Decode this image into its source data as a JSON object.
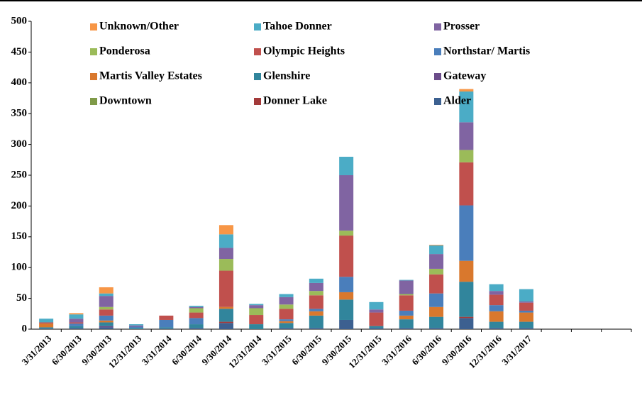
{
  "chart_data": {
    "type": "stacked_bar",
    "categories": [
      "3/31/2013",
      "6/30/2013",
      "9/30/2013",
      "12/31/2013",
      "3/31/2014",
      "6/30/2014",
      "9/30/2014",
      "12/31/2014",
      "3/31/2015",
      "6/30/2015",
      "9/30/2015",
      "12/31/2015",
      "3/31/2016",
      "6/30/2016",
      "9/30/2016",
      "12/31/2016",
      "3/31/2017",
      null,
      null,
      null
    ],
    "series": [
      {
        "name": "Alder",
        "color": "#3c6090",
        "values": [
          1,
          2,
          3,
          0,
          1,
          2,
          10,
          0,
          2,
          2,
          15,
          2,
          2,
          2,
          18,
          2,
          2,
          null,
          null,
          null
        ]
      },
      {
        "name": "Donner Lake",
        "color": "#a33a3a",
        "values": [
          0,
          0,
          0,
          0,
          0,
          0,
          2,
          0,
          0,
          0,
          0,
          0,
          0,
          0,
          2,
          0,
          0,
          null,
          null,
          null
        ]
      },
      {
        "name": "Downtown",
        "color": "#7f9a48",
        "values": [
          0,
          0,
          0,
          0,
          0,
          0,
          0,
          0,
          0,
          0,
          0,
          0,
          0,
          0,
          0,
          0,
          0,
          null,
          null,
          null
        ]
      },
      {
        "name": "Gateway",
        "color": "#6b4c8a",
        "values": [
          0,
          0,
          2,
          0,
          0,
          0,
          0,
          0,
          0,
          0,
          0,
          0,
          0,
          0,
          0,
          0,
          0,
          null,
          null,
          null
        ]
      },
      {
        "name": "Glenshire",
        "color": "#31859c",
        "values": [
          2,
          3,
          6,
          2,
          2,
          6,
          21,
          8,
          8,
          20,
          33,
          3,
          14,
          18,
          57,
          10,
          10,
          null,
          null,
          null
        ]
      },
      {
        "name": "Martis Valley Estates",
        "color": "#d9782d",
        "values": [
          6,
          0,
          3,
          0,
          0,
          0,
          3,
          0,
          3,
          7,
          12,
          0,
          6,
          16,
          34,
          17,
          15,
          null,
          null,
          null
        ]
      },
      {
        "name": "Northstar/ Martis",
        "color": "#4a7ebb",
        "values": [
          0,
          4,
          8,
          2,
          12,
          10,
          0,
          0,
          3,
          4,
          25,
          0,
          8,
          22,
          90,
          10,
          3,
          null,
          null,
          null
        ]
      },
      {
        "name": "Olympic Heights",
        "color": "#c0504d",
        "values": [
          2,
          2,
          10,
          0,
          7,
          9,
          59,
          15,
          17,
          22,
          67,
          22,
          25,
          31,
          70,
          17,
          13,
          null,
          null,
          null
        ]
      },
      {
        "name": "Ponderosa",
        "color": "#9bbb59",
        "values": [
          0,
          0,
          4,
          0,
          0,
          7,
          19,
          11,
          7,
          7,
          8,
          0,
          2,
          9,
          20,
          0,
          0,
          null,
          null,
          null
        ]
      },
      {
        "name": "Prosser",
        "color": "#8064a2",
        "values": [
          0,
          6,
          18,
          2,
          0,
          2,
          18,
          5,
          12,
          13,
          90,
          5,
          22,
          24,
          45,
          6,
          2,
          null,
          null,
          null
        ]
      },
      {
        "name": "Tahoe Donner",
        "color": "#4bacc6",
        "values": [
          6,
          7,
          4,
          2,
          0,
          2,
          22,
          2,
          5,
          7,
          30,
          12,
          1,
          14,
          50,
          11,
          20,
          null,
          null,
          null
        ]
      },
      {
        "name": "Unknown/Other",
        "color": "#f79646",
        "values": [
          0,
          2,
          10,
          0,
          0,
          0,
          15,
          0,
          0,
          0,
          0,
          0,
          0,
          1,
          4,
          0,
          0,
          null,
          null,
          null
        ]
      }
    ],
    "ylim": [
      0,
      500
    ],
    "yticks": [
      0,
      50,
      100,
      150,
      200,
      250,
      300,
      350,
      400,
      450,
      500
    ]
  }
}
